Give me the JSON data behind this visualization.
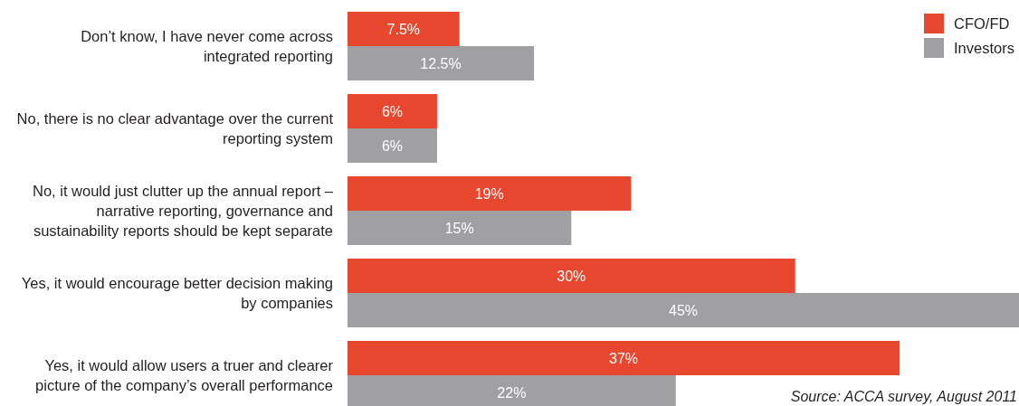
{
  "chart_data": {
    "type": "bar",
    "orientation": "horizontal",
    "categories": [
      "Don’t know, I have never come across integrated reporting",
      "No, there is no clear advantage over the current reporting system",
      "No, it would just clutter up the annual report – narrative reporting, governance and sustainability reports should be kept separate",
      "Yes, it would encourage better decision making by companies",
      "Yes, it would allow users a truer and clearer picture of the company’s overall performance"
    ],
    "series": [
      {
        "name": "CFO/FD",
        "color": "#e8472f",
        "values": [
          7.5,
          6,
          19,
          30,
          37
        ],
        "value_labels": [
          "7.5%",
          "6%",
          "19%",
          "30%",
          "37%"
        ]
      },
      {
        "name": "Investors",
        "color": "#a0a0a2",
        "values": [
          12.5,
          6,
          15,
          45,
          22
        ],
        "value_labels": [
          "12.5%",
          "6%",
          "15%",
          "45%",
          "22%"
        ]
      }
    ],
    "legend": "top right",
    "annotations": [
      "Source: ACCA survey, August 2011"
    ]
  }
}
